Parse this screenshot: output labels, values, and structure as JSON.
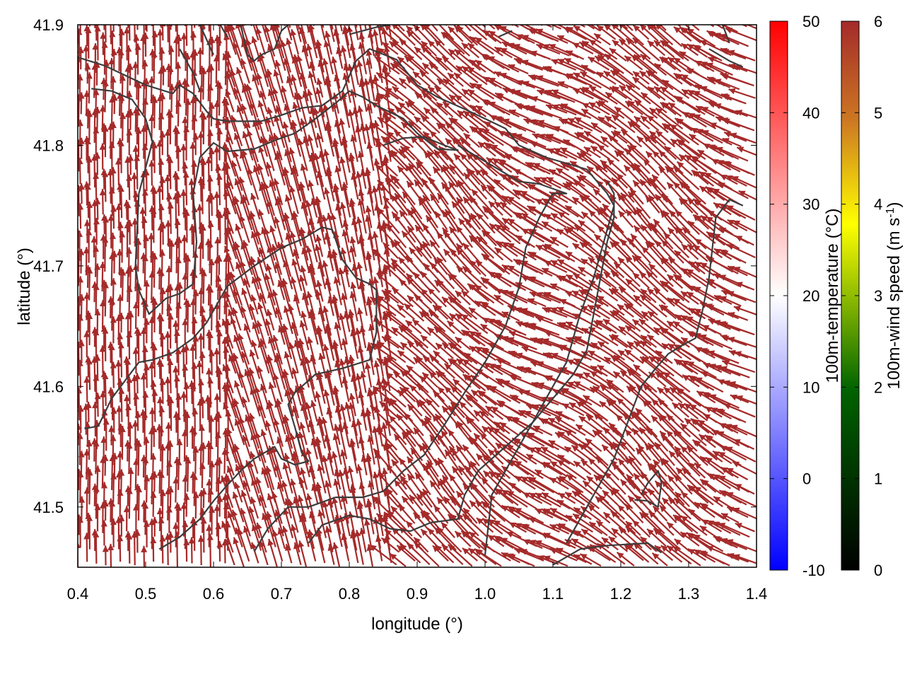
{
  "chart_data": {
    "type": "vector-field",
    "xlabel": "longitude (°)",
    "ylabel": "latitude (°)",
    "xlim": [
      0.4,
      1.4
    ],
    "ylim": [
      41.45,
      41.9
    ],
    "x_ticks": [
      "0.4",
      "0.5",
      "0.6",
      "0.7",
      "0.8",
      "0.9",
      "1.0",
      "1.1",
      "1.2",
      "1.3",
      "1.4"
    ],
    "y_ticks": [
      "41.5",
      "41.6",
      "41.7",
      "41.8",
      "41.9"
    ],
    "x_tick_values": [
      0.4,
      0.5,
      0.6,
      0.7,
      0.8,
      0.9,
      1.0,
      1.1,
      1.2,
      1.3,
      1.4
    ],
    "y_tick_values": [
      41.5,
      41.6,
      41.7,
      41.8,
      41.9
    ],
    "grid": false,
    "arrow_color": "#a52a2a",
    "contour_color": "#3c3c3c",
    "colorbars": [
      {
        "label": "100m-temperature (°C)",
        "range": [
          -10,
          50
        ],
        "ticks": [
          "50",
          "40",
          "30",
          "20",
          "10",
          "0",
          "-10"
        ],
        "tick_values": [
          50,
          40,
          30,
          20,
          10,
          0,
          -10
        ],
        "colors": [
          "#0000ff",
          "#ffffff",
          "#ff0000"
        ]
      },
      {
        "label_main": "100m-wind speed (m s",
        "label_sup": "-1",
        "label_end": ")",
        "range": [
          0,
          6
        ],
        "ticks": [
          "6",
          "5",
          "4",
          "3",
          "2",
          "1",
          "0"
        ],
        "tick_values": [
          6,
          5,
          4,
          3,
          2,
          1,
          0
        ],
        "colors": [
          "#000000",
          "#006400",
          "#ffff00",
          "#a52a2a"
        ]
      }
    ],
    "contours": [
      [
        [
          0.4,
          41.873
        ],
        [
          0.44,
          41.866
        ],
        [
          0.5,
          41.85
        ],
        [
          0.54,
          41.843
        ],
        [
          0.55,
          41.85
        ],
        [
          0.57,
          41.843
        ],
        [
          0.59,
          41.828
        ],
        [
          0.6,
          41.822
        ],
        [
          0.62,
          41.82
        ],
        [
          0.67,
          41.82
        ],
        [
          0.7,
          41.825
        ],
        [
          0.73,
          41.831
        ],
        [
          0.76,
          41.833
        ],
        [
          0.79,
          41.845
        ],
        [
          0.81,
          41.87
        ],
        [
          0.83,
          41.88
        ],
        [
          0.87,
          41.871
        ],
        [
          0.9,
          41.85
        ],
        [
          0.93,
          41.84
        ],
        [
          0.97,
          41.83
        ],
        [
          1.0,
          41.822
        ],
        [
          1.03,
          41.814
        ],
        [
          1.05,
          41.8
        ],
        [
          1.09,
          41.79
        ],
        [
          1.15,
          41.78
        ],
        [
          1.18,
          41.76
        ],
        [
          1.19,
          41.75
        ],
        [
          1.18,
          41.73
        ],
        [
          1.16,
          41.69
        ],
        [
          1.14,
          41.66
        ],
        [
          1.12,
          41.62
        ],
        [
          1.08,
          41.58
        ],
        [
          1.05,
          41.55
        ],
        [
          1.01,
          41.51
        ],
        [
          1.0,
          41.46
        ]
      ],
      [
        [
          0.42,
          41.847
        ],
        [
          0.45,
          41.845
        ],
        [
          0.48,
          41.838
        ],
        [
          0.5,
          41.822
        ],
        [
          0.51,
          41.803
        ],
        [
          0.49,
          41.76
        ],
        [
          0.485,
          41.7
        ],
        [
          0.49,
          41.68
        ],
        [
          0.505,
          41.66
        ],
        [
          0.53,
          41.673
        ],
        [
          0.55,
          41.677
        ],
        [
          0.57,
          41.685
        ],
        [
          0.575,
          41.72
        ],
        [
          0.57,
          41.76
        ],
        [
          0.58,
          41.79
        ],
        [
          0.6,
          41.802
        ],
        [
          0.62,
          41.795
        ],
        [
          0.66,
          41.797
        ],
        [
          0.69,
          41.804
        ],
        [
          0.72,
          41.81
        ],
        [
          0.75,
          41.822
        ],
        [
          0.78,
          41.835
        ],
        [
          0.8,
          41.845
        ],
        [
          0.82,
          41.84
        ],
        [
          0.84,
          41.833
        ],
        [
          0.88,
          41.822
        ],
        [
          0.9,
          41.81
        ],
        [
          0.93,
          41.797
        ],
        [
          0.96,
          41.796
        ],
        [
          0.94,
          41.8
        ],
        [
          0.91,
          41.807
        ],
        [
          0.88,
          41.806
        ],
        [
          0.85,
          41.8
        ]
      ],
      [
        [
          0.41,
          41.565
        ],
        [
          0.43,
          41.567
        ],
        [
          0.45,
          41.59
        ],
        [
          0.49,
          41.62
        ],
        [
          0.51,
          41.622
        ],
        [
          0.54,
          41.628
        ],
        [
          0.57,
          41.64
        ],
        [
          0.59,
          41.653
        ],
        [
          0.62,
          41.683
        ],
        [
          0.66,
          41.7
        ],
        [
          0.7,
          41.715
        ],
        [
          0.73,
          41.722
        ],
        [
          0.76,
          41.732
        ],
        [
          0.775,
          41.73
        ],
        [
          0.79,
          41.705
        ],
        [
          0.81,
          41.69
        ],
        [
          0.83,
          41.685
        ],
        [
          0.84,
          41.68
        ],
        [
          0.84,
          41.645
        ],
        [
          0.83,
          41.622
        ],
        [
          0.79,
          41.615
        ],
        [
          0.75,
          41.61
        ],
        [
          0.72,
          41.595
        ],
        [
          0.71,
          41.585
        ],
        [
          0.72,
          41.566
        ],
        [
          0.73,
          41.545
        ],
        [
          0.74,
          41.538
        ],
        [
          0.72,
          41.535
        ],
        [
          0.7,
          41.54
        ],
        [
          0.69,
          41.55
        ],
        [
          0.66,
          41.54
        ],
        [
          0.64,
          41.53
        ],
        [
          0.62,
          41.518
        ],
        [
          0.6,
          41.505
        ],
        [
          0.58,
          41.49
        ],
        [
          0.55,
          41.475
        ],
        [
          0.52,
          41.465
        ]
      ],
      [
        [
          0.66,
          41.463
        ],
        [
          0.68,
          41.482
        ],
        [
          0.71,
          41.5
        ],
        [
          0.74,
          41.5
        ],
        [
          0.78,
          41.508
        ],
        [
          0.82,
          41.508
        ],
        [
          0.85,
          41.513
        ],
        [
          0.88,
          41.53
        ],
        [
          0.91,
          41.543
        ],
        [
          0.94,
          41.568
        ],
        [
          0.97,
          41.595
        ],
        [
          1.0,
          41.62
        ],
        [
          1.03,
          41.65
        ],
        [
          1.05,
          41.682
        ],
        [
          1.06,
          41.715
        ],
        [
          1.08,
          41.74
        ],
        [
          1.1,
          41.76
        ],
        [
          1.12,
          41.76
        ],
        [
          1.08,
          41.768
        ],
        [
          1.05,
          41.77
        ],
        [
          1.02,
          41.78
        ],
        [
          0.99,
          41.79
        ],
        [
          0.96,
          41.8
        ]
      ],
      [
        [
          0.74,
          41.47
        ],
        [
          0.76,
          41.485
        ],
        [
          0.8,
          41.493
        ],
        [
          0.83,
          41.49
        ],
        [
          0.86,
          41.482
        ],
        [
          0.89,
          41.48
        ],
        [
          0.92,
          41.487
        ],
        [
          0.96,
          41.49
        ],
        [
          0.97,
          41.51
        ],
        [
          0.99,
          41.53
        ],
        [
          1.03,
          41.55
        ],
        [
          1.07,
          41.57
        ],
        [
          1.1,
          41.59
        ],
        [
          1.13,
          41.61
        ],
        [
          1.15,
          41.63
        ],
        [
          1.16,
          41.66
        ],
        [
          1.17,
          41.69
        ],
        [
          1.18,
          41.72
        ],
        [
          1.19,
          41.74
        ],
        [
          1.19,
          41.76
        ],
        [
          1.18,
          41.77
        ]
      ],
      [
        [
          1.1,
          41.452
        ],
        [
          1.14,
          41.465
        ],
        [
          1.18,
          41.468
        ],
        [
          1.24,
          41.47
        ],
        [
          1.26,
          41.462
        ]
      ],
      [
        [
          1.12,
          41.47
        ],
        [
          1.15,
          41.5
        ],
        [
          1.17,
          41.52
        ],
        [
          1.19,
          41.54
        ],
        [
          1.21,
          41.57
        ],
        [
          1.23,
          41.6
        ],
        [
          1.25,
          41.614
        ],
        [
          1.27,
          41.627
        ],
        [
          1.29,
          41.634
        ],
        [
          1.31,
          41.64
        ],
        [
          1.32,
          41.662
        ],
        [
          1.33,
          41.69
        ],
        [
          1.34,
          41.74
        ],
        [
          1.36,
          41.755
        ],
        [
          1.38,
          41.75
        ]
      ],
      [
        [
          1.22,
          41.506
        ],
        [
          1.24,
          41.505
        ],
        [
          1.255,
          41.5
        ],
        [
          1.26,
          41.52
        ],
        [
          1.255,
          41.53
        ],
        [
          1.24,
          41.52
        ],
        [
          1.23,
          41.51
        ]
      ],
      [
        [
          0.55,
          41.88
        ],
        [
          0.57,
          41.86
        ],
        [
          0.58,
          41.845
        ]
      ],
      [
        [
          0.58,
          41.9
        ],
        [
          0.6,
          41.875
        ]
      ],
      [
        [
          0.61,
          41.9
        ],
        [
          0.62,
          41.89
        ]
      ],
      [
        [
          0.64,
          41.9
        ],
        [
          0.65,
          41.875
        ],
        [
          0.66,
          41.87
        ],
        [
          0.67,
          41.875
        ],
        [
          0.69,
          41.88
        ],
        [
          0.7,
          41.895
        ],
        [
          0.71,
          41.9
        ]
      ],
      [
        [
          0.8,
          41.892
        ],
        [
          0.84,
          41.898
        ],
        [
          0.86,
          41.9
        ]
      ],
      [
        [
          1.02,
          41.89
        ],
        [
          1.04,
          41.895
        ]
      ],
      [
        [
          1.33,
          41.88
        ],
        [
          1.36,
          41.87
        ],
        [
          1.38,
          41.865
        ]
      ],
      [
        [
          1.35,
          41.9
        ],
        [
          1.36,
          41.885
        ]
      ]
    ],
    "wind_field": {
      "u": "mostly south-to-north with westward veer east of 0.9°, strong convergence near 0.85°",
      "speed_range": [
        5.5,
        6
      ]
    }
  }
}
